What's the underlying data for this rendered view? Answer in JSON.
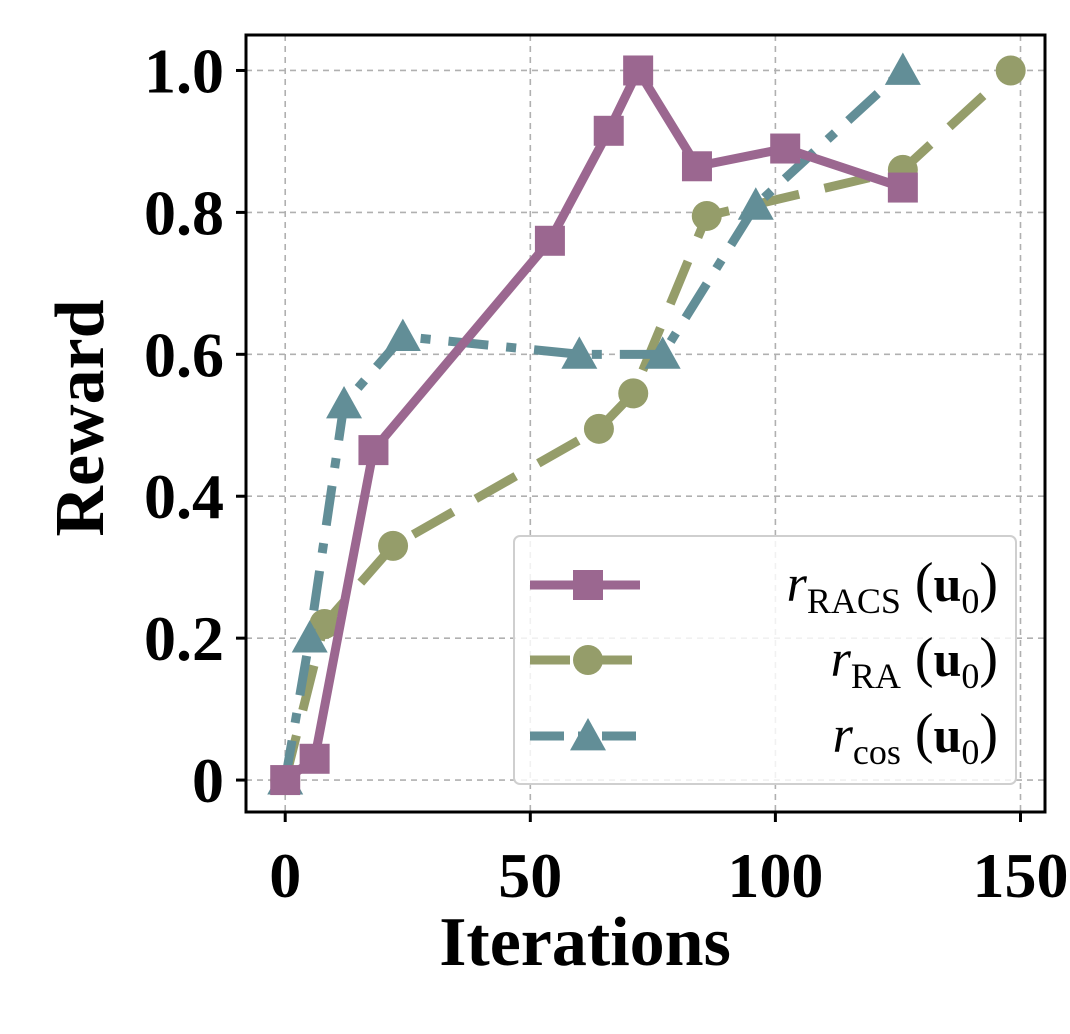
{
  "chart_data": {
    "type": "line",
    "xlabel": "Iterations",
    "ylabel": "Reward",
    "xlim": [
      -8,
      155
    ],
    "ylim": [
      -0.045,
      1.05
    ],
    "xticks": [
      0,
      50,
      100,
      150
    ],
    "xtick_labels": [
      "0",
      "50",
      "100",
      "150"
    ],
    "yticks": [
      0,
      0.2,
      0.4,
      0.6,
      0.8,
      1.0
    ],
    "ytick_labels": [
      "0",
      "0.2",
      "0.4",
      "0.6",
      "0.8",
      "1.0"
    ],
    "grid": true,
    "legend_position": "lower-right",
    "series": [
      {
        "name": "r_RACS (u_0)",
        "legend": {
          "main": "r",
          "sub": "RACS",
          "open": "(",
          "u": "u",
          "usub": "0",
          "close": ")"
        },
        "color": "#9b6790",
        "marker": "square",
        "linestyle": "solid",
        "x": [
          0,
          6,
          18,
          54,
          66,
          72,
          84,
          102,
          126
        ],
        "y": [
          0.0,
          0.03,
          0.465,
          0.76,
          0.915,
          1.0,
          0.865,
          0.89,
          0.835
        ]
      },
      {
        "name": "r_RA (u_0)",
        "legend": {
          "main": "r",
          "sub": "RA",
          "open": "(",
          "u": "u",
          "usub": "0",
          "close": ")"
        },
        "color": "#959d6a",
        "marker": "circle",
        "linestyle": "dashed",
        "x": [
          0,
          8,
          22,
          64,
          71,
          86,
          126,
          148
        ],
        "y": [
          0.0,
          0.22,
          0.33,
          0.495,
          0.545,
          0.795,
          0.86,
          1.0
        ]
      },
      {
        "name": "r_cos (u_0)",
        "legend": {
          "main": "r",
          "sub": "cos",
          "open": "(",
          "u": "u",
          "usub": "0",
          "close": ")"
        },
        "color": "#628e97",
        "marker": "triangle",
        "linestyle": "dashdot",
        "x": [
          0,
          5,
          12,
          24,
          60,
          77,
          96,
          126
        ],
        "y": [
          0.0,
          0.2,
          0.53,
          0.625,
          0.6,
          0.6,
          0.81,
          1.0
        ]
      }
    ]
  }
}
